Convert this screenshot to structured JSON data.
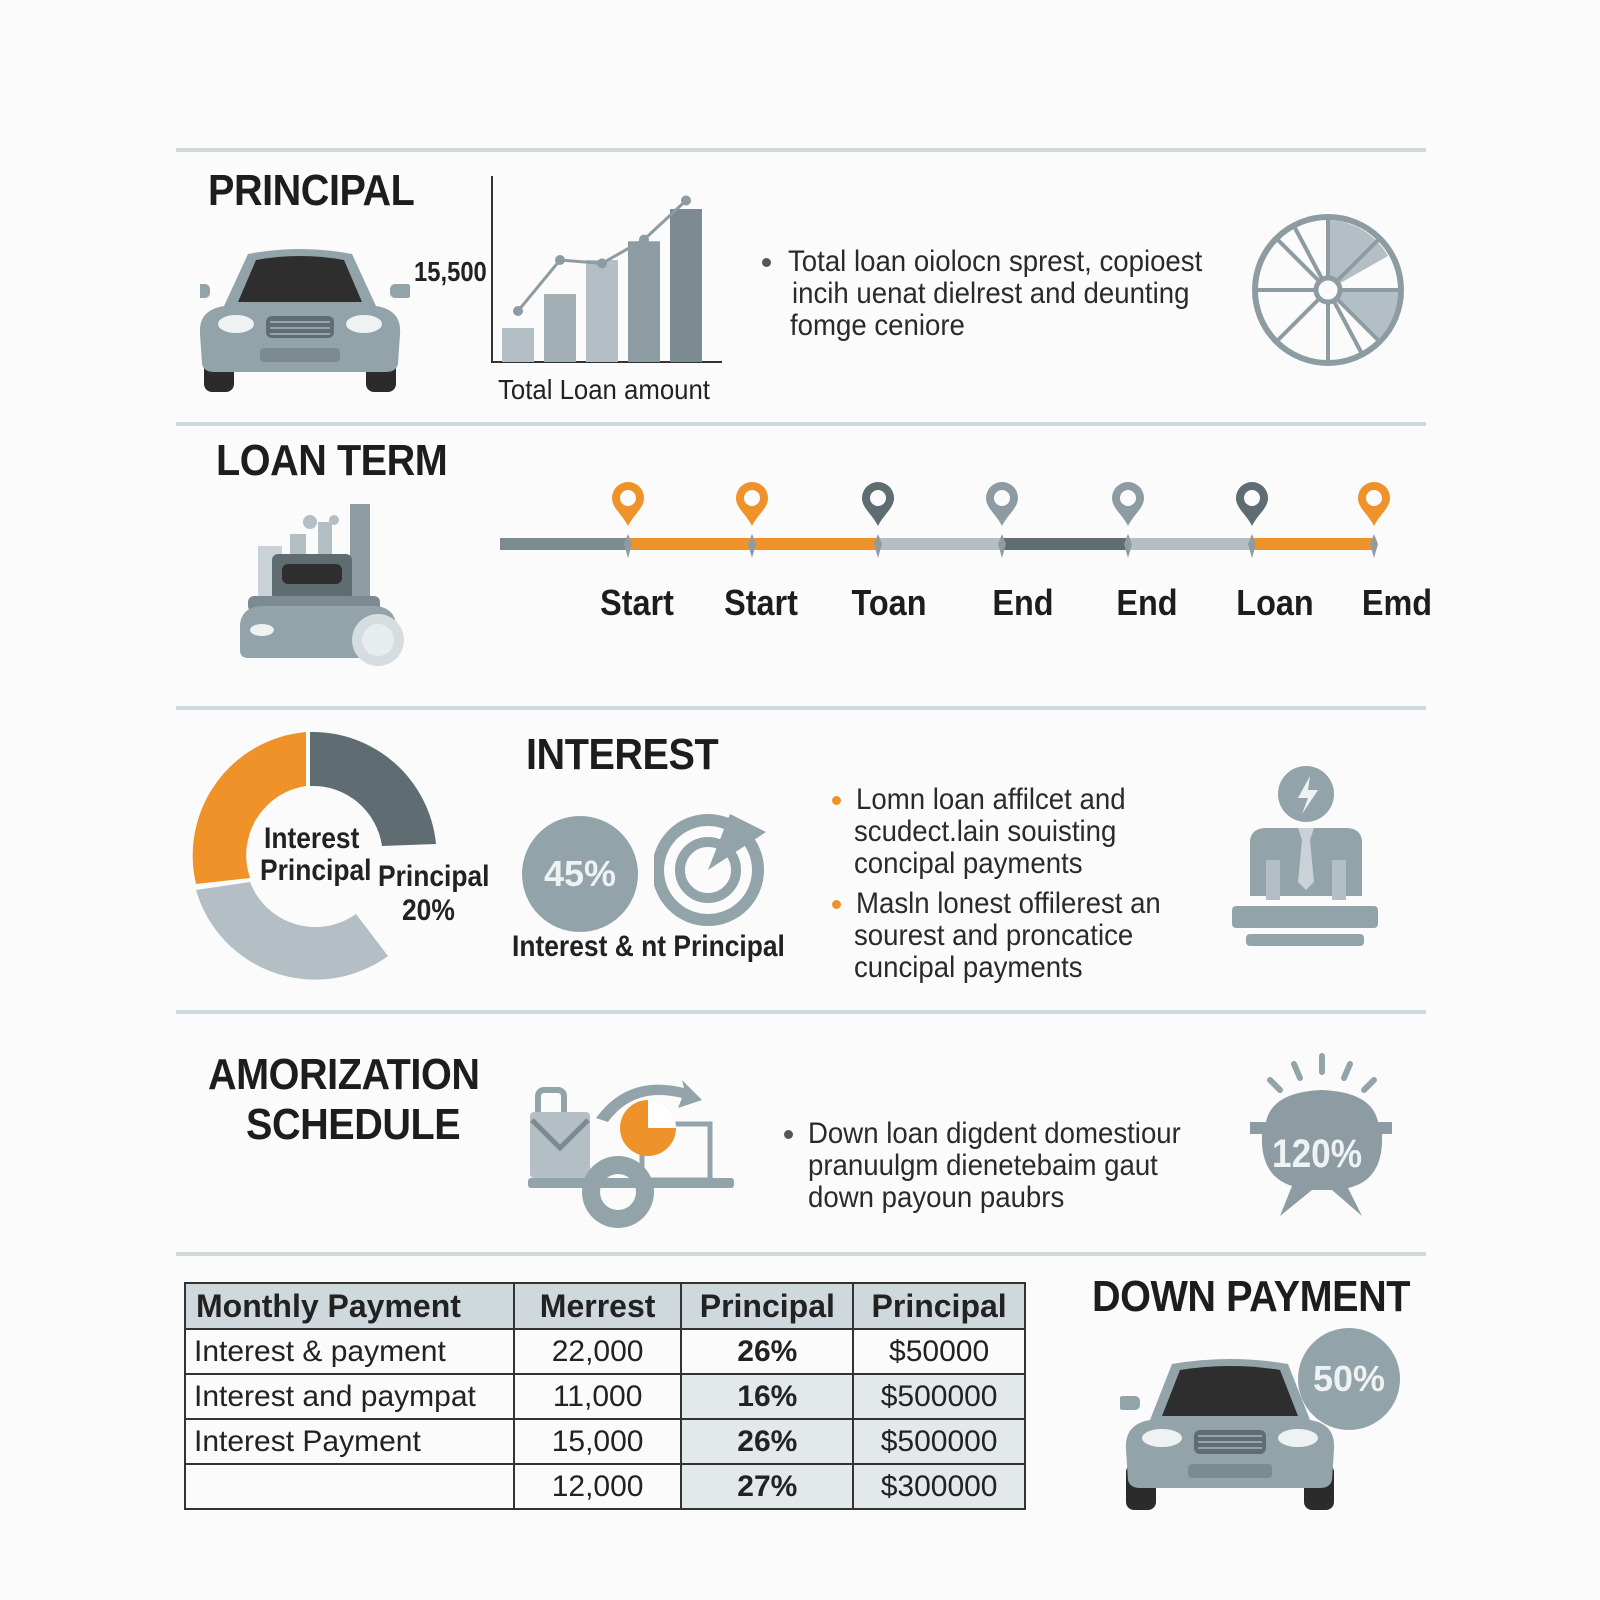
{
  "colors": {
    "accent_orange": "#f0922a",
    "slate_dark": "#5f6d73",
    "slate_mid": "#8d9ca2",
    "slate_light": "#b3bfc4",
    "rule": "#cfd8dc"
  },
  "principal": {
    "title": "PRINCIPAL",
    "amount_label": "15,500",
    "chart_caption": "Total Loan amount",
    "bullet_lines": [
      "Total loan oiolocn sprest, copioest",
      "incih uenat dielrest and deunting",
      "fomge ceniore"
    ],
    "icon": "wheel-icon"
  },
  "loan_term": {
    "title": "LOAN TERM",
    "milestones": [
      {
        "label": "Start",
        "pin_color": "#f0922a"
      },
      {
        "label": "Start",
        "pin_color": "#f0922a"
      },
      {
        "label": "Toan",
        "pin_color": "#5f6d73"
      },
      {
        "label": "End",
        "pin_color": "#8d9ca2"
      },
      {
        "label": "End",
        "pin_color": "#8d9ca2"
      },
      {
        "label": "Loan",
        "pin_color": "#5f6d73"
      },
      {
        "label": "Emd",
        "pin_color": "#f0922a"
      }
    ]
  },
  "interest": {
    "title": "INTEREST",
    "donut_center_line1": "Interest",
    "donut_center_line2": "Principal",
    "donut_side_label": "Principal",
    "donut_side_value": "20%",
    "circle_value": "45%",
    "circle_caption": "Interest & nt Principal",
    "bullets": [
      [
        "Lomn loan affilcet and",
        "scudect.lain souisting",
        "concipal payments"
      ],
      [
        "Masln lonest offilerest an",
        "sourest and proncatice",
        "cuncipal payments"
      ]
    ],
    "icon": "advisor-icon"
  },
  "amortization": {
    "title_line1": "AMORIZATION",
    "title_line2": "SCHEDULE",
    "bullet_lines": [
      "Down loan digdent domestiour",
      "pranuulgm dienetebaim gaut",
      "down payoun paubrs"
    ],
    "badge_value": "120%"
  },
  "schedule_table": {
    "headers": [
      "Monthly Payment",
      "Merrest",
      "Principal",
      "Principal"
    ],
    "rows": [
      [
        "Interest & payment",
        "22,000",
        "26%",
        "$50000"
      ],
      [
        "Interest and paympat",
        "11,000",
        "16%",
        "$500000"
      ],
      [
        "Interest Payment",
        "15,000",
        "26%",
        "$500000"
      ],
      [
        "",
        "12,000",
        "27%",
        "$300000"
      ]
    ]
  },
  "down_payment": {
    "title": "DOWN PAYMENT",
    "badge_value": "50%"
  },
  "chart_data": {
    "type": "bar",
    "title": "",
    "xlabel": "Total Loan amount",
    "ylabel": "",
    "values": [
      0.2,
      0.4,
      0.6,
      0.71,
      0.9
    ],
    "trend_line": [
      0.3,
      0.6,
      0.58,
      0.72,
      0.95
    ]
  }
}
